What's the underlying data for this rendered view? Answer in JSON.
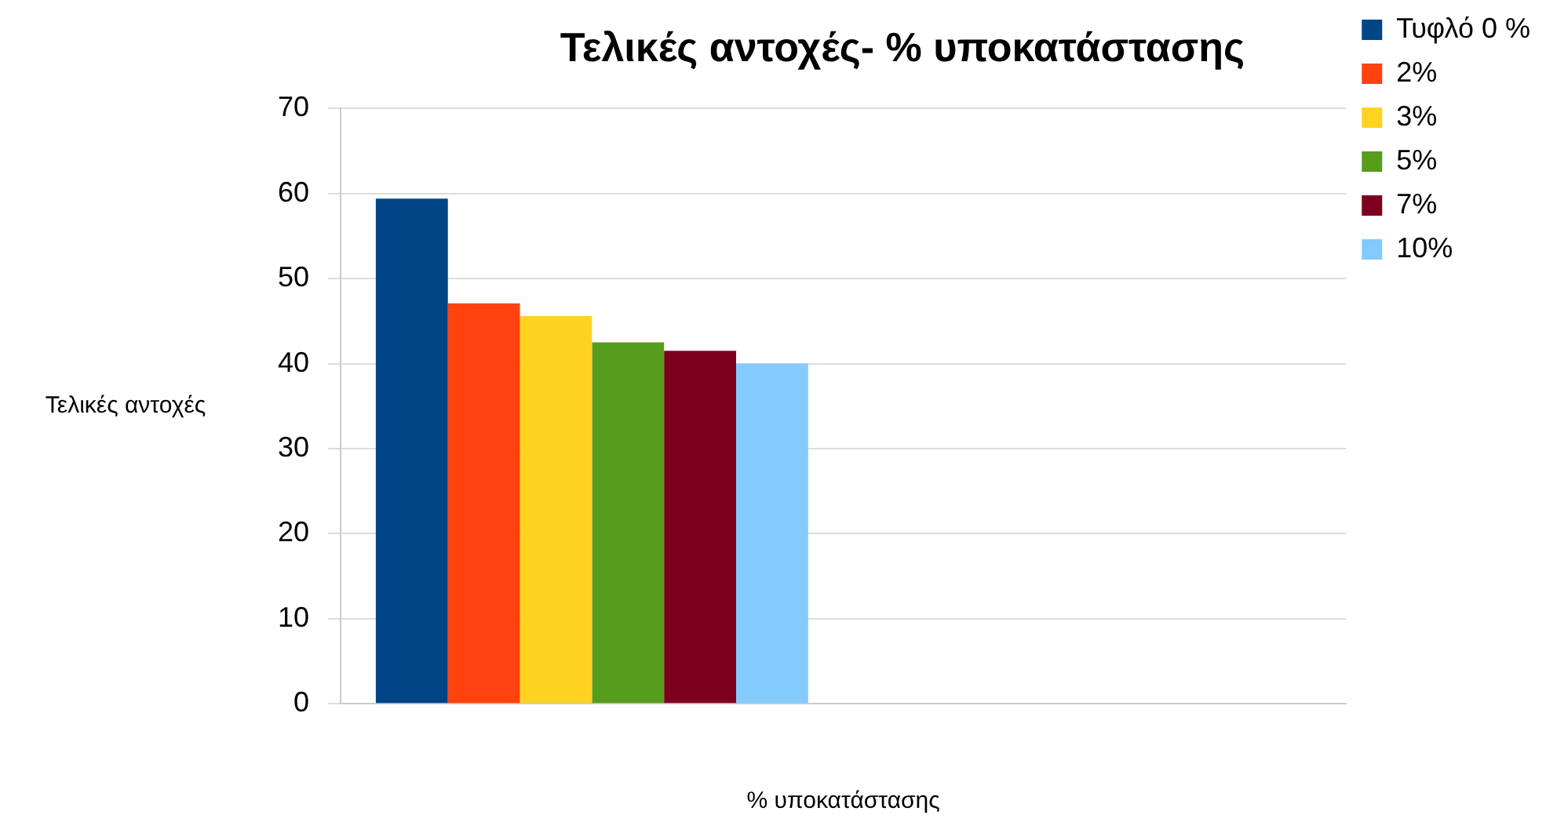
{
  "chart_data": {
    "type": "bar",
    "title": "Τελικές αντοχές- % υποκατάστασης",
    "xlabel": "% υποκατάστασης",
    "ylabel": "Τελικές αντοχές",
    "categories": [
      null,
      null
    ],
    "series": [
      {
        "name": "Τυφλό 0 %",
        "color": "#004586",
        "values": [
          59.4,
          null
        ]
      },
      {
        "name": "2%",
        "color": "#ff420e",
        "values": [
          47.1,
          null
        ]
      },
      {
        "name": "3%",
        "color": "#ffd320",
        "values": [
          45.6,
          null
        ]
      },
      {
        "name": "5%",
        "color": "#579d1c",
        "values": [
          42.5,
          null
        ]
      },
      {
        "name": "7%",
        "color": "#7e0021",
        "values": [
          41.5,
          null
        ]
      },
      {
        "name": "10%",
        "color": "#83caff",
        "values": [
          40,
          null
        ]
      }
    ],
    "ylim": [
      0,
      70
    ],
    "yticks": [
      0,
      10,
      20,
      30,
      40,
      50,
      60,
      70
    ],
    "grid": "y",
    "legend": "right"
  }
}
